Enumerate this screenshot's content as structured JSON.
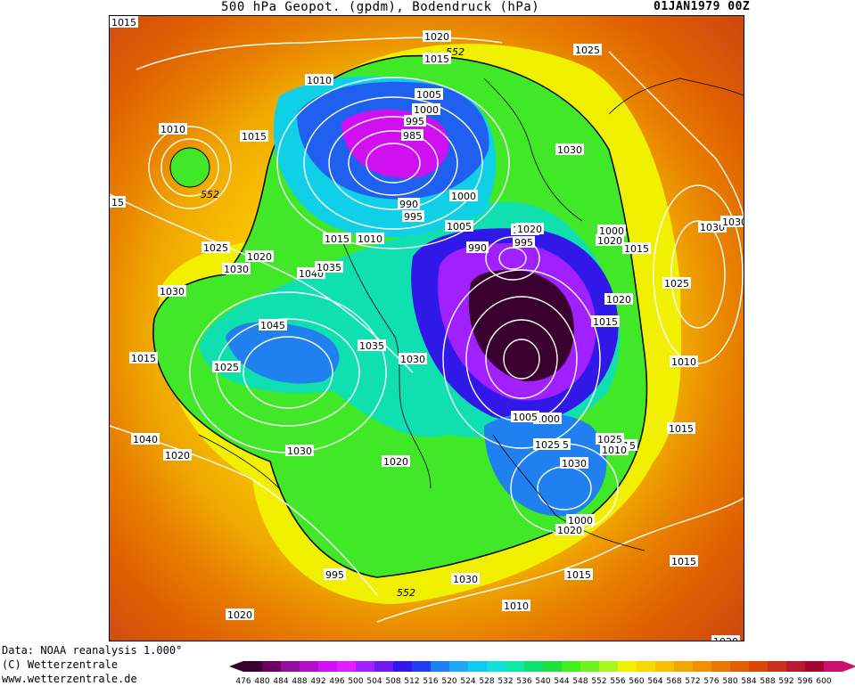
{
  "header": {
    "title": "500 hPa Geopot. (gpdm), Bodendruck (hPa)",
    "date": "01JAN1979 00Z"
  },
  "footer": {
    "line1": "Data: NOAA reanalysis 1.000°",
    "line2": "(C) Wetterzentrale",
    "line3": "www.wetterzentrale.de"
  },
  "legend": {
    "values": [
      "476",
      "480",
      "484",
      "488",
      "492",
      "496",
      "500",
      "504",
      "508",
      "512",
      "516",
      "520",
      "524",
      "528",
      "532",
      "536",
      "540",
      "544",
      "548",
      "552",
      "556",
      "560",
      "564",
      "568",
      "572",
      "576",
      "580",
      "584",
      "588",
      "592",
      "596",
      "600"
    ],
    "colors": [
      "#3a0030",
      "#6a0060",
      "#90109a",
      "#b010c8",
      "#d010f0",
      "#e020ff",
      "#a020ff",
      "#7018f0",
      "#3018e8",
      "#2040f0",
      "#2080f0",
      "#20a8f0",
      "#10c8f0",
      "#10e0d8",
      "#10e8a8",
      "#10e070",
      "#20e040",
      "#40f020",
      "#70f020",
      "#a8f820",
      "#f0f000",
      "#f8d800",
      "#f8c000",
      "#f0a800",
      "#f09000",
      "#e87800",
      "#e06000",
      "#d84800",
      "#c83020",
      "#b81830",
      "#a00830",
      "#c81070"
    ]
  },
  "map_labels": [
    "1020",
    "552",
    "1015",
    "1025",
    "1010",
    "1005",
    "1000",
    "995",
    "985",
    "1015",
    "1010",
    "552",
    "1030",
    "15",
    "1000",
    "990",
    "995",
    "1005",
    "1005",
    "1015",
    "1010",
    "1025",
    "1020",
    "1040",
    "1035",
    "1030",
    "1020",
    "995",
    "990",
    "1000",
    "1020",
    "1015",
    "1030",
    "1030",
    "1025",
    "1030",
    "1020",
    "1015",
    "1045",
    "1035",
    "1030",
    "1015",
    "1010",
    "1025",
    "1020",
    "1040",
    "1030",
    "1020",
    "1015",
    "1000",
    "1005",
    "1015",
    "1010",
    "1025",
    "1030",
    "1015",
    "1020",
    "1025",
    "1000",
    "1015",
    "995",
    "1030",
    "552",
    "1010",
    "1015",
    "1020",
    "1020",
    "1015"
  ]
}
